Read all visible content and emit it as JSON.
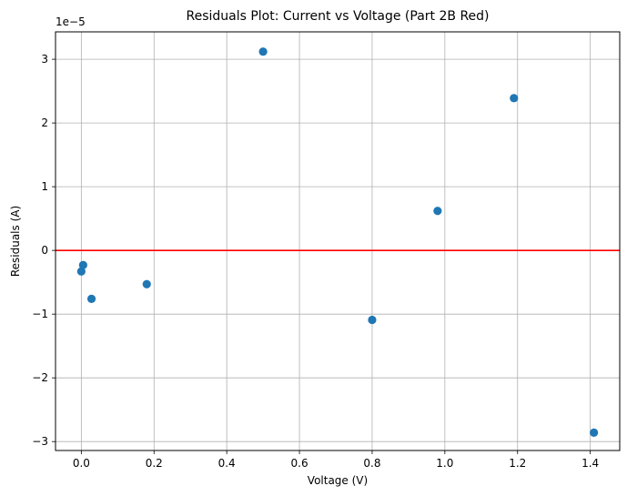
{
  "chart_data": {
    "type": "scatter",
    "title": "Residuals Plot: Current vs Voltage (Part 2B Red)",
    "xlabel": "Voltage (V)",
    "ylabel": "Residuals (A)",
    "y_offset_text": "1e−5",
    "y_scale_factor": 1e-05,
    "xlim": [
      -0.071,
      1.481
    ],
    "ylim": [
      -3.14,
      3.43
    ],
    "x_ticks": [
      0.0,
      0.2,
      0.4,
      0.6,
      0.8,
      1.0,
      1.2,
      1.4
    ],
    "x_tick_labels": [
      "0.0",
      "0.2",
      "0.4",
      "0.6",
      "0.8",
      "1.0",
      "1.2",
      "1.4"
    ],
    "y_ticks": [
      -3,
      -2,
      -1,
      0,
      1,
      2,
      3
    ],
    "y_tick_labels": [
      "−3",
      "−2",
      "−1",
      "0",
      "1",
      "2",
      "3"
    ],
    "grid": true,
    "reference_line": {
      "y": 0,
      "color": "#ff0000"
    },
    "marker_color": "#1f77b4",
    "points": [
      {
        "x": 0.0,
        "y": -0.33
      },
      {
        "x": 0.005,
        "y": -0.23
      },
      {
        "x": 0.028,
        "y": -0.76
      },
      {
        "x": 0.18,
        "y": -0.53
      },
      {
        "x": 0.5,
        "y": 3.12
      },
      {
        "x": 0.8,
        "y": -1.09
      },
      {
        "x": 0.98,
        "y": 0.62
      },
      {
        "x": 1.19,
        "y": 2.39
      },
      {
        "x": 1.41,
        "y": -2.86
      }
    ]
  }
}
